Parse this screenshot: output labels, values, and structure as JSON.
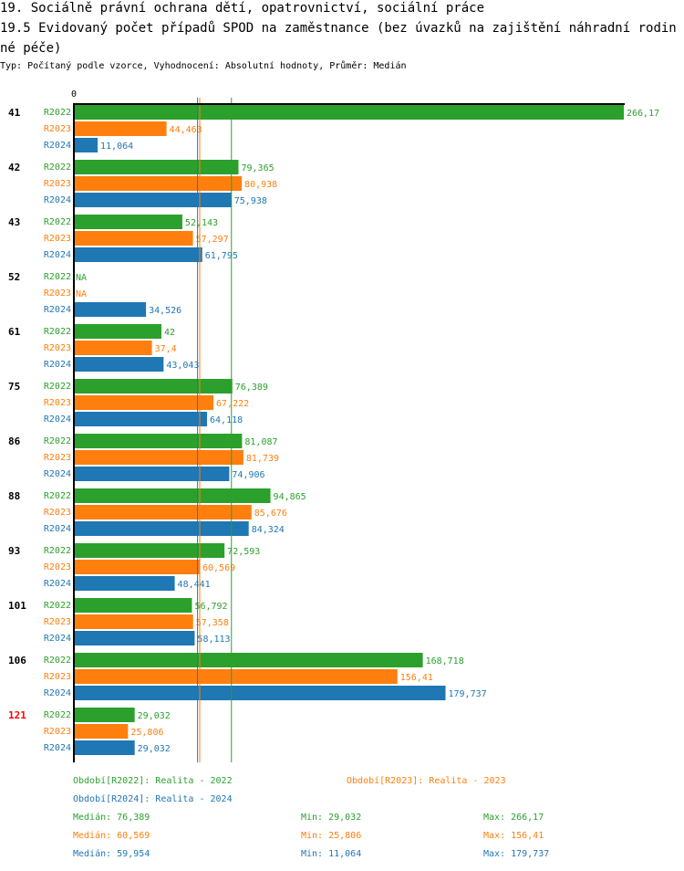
{
  "header": {
    "title": "19. Sociálně právní ochrana dětí, opatrovnictví, sociální práce",
    "subtitle": "19.5 Evidovaný počet případů SPOD na zaměstnance (bez úvazků na zajištění náhradní rodinné péče)",
    "meta": "Typ: Počítaný podle vzorce, Vyhodnocení: Absolutní hodnoty, Průměr: Medián"
  },
  "colors": {
    "R2022": "#2ca02c",
    "R2023": "#ff7f0e",
    "R2024": "#1f77b4",
    "highlight": "#ff0000",
    "axis": "#000000"
  },
  "chart_data": {
    "type": "bar",
    "orientation": "horizontal",
    "title": "19.5 Evidovaný počet případů SPOD na zaměstnance (bez úvazků na zajištění náhradní rodinné péče)",
    "xlabel": "",
    "ylabel": "",
    "x_tick_labels": [
      "0"
    ],
    "xlim": [
      0,
      266.17
    ],
    "grid": false,
    "legend_position": "bottom",
    "categories": [
      "41",
      "42",
      "43",
      "52",
      "61",
      "75",
      "86",
      "88",
      "93",
      "101",
      "106",
      "121"
    ],
    "highlighted_category": "121",
    "series": [
      {
        "name": "R2022",
        "color": "#2ca02c",
        "values": [
          266.17,
          79.365,
          52.143,
          null,
          42,
          76.389,
          81.087,
          94.865,
          72.593,
          56.792,
          168.718,
          29.032
        ],
        "labels": [
          "266,17",
          "79,365",
          "52,143",
          "NA",
          "42",
          "76,389",
          "81,087",
          "94,865",
          "72,593",
          "56,792",
          "168,718",
          "29,032"
        ]
      },
      {
        "name": "R2023",
        "color": "#ff7f0e",
        "values": [
          44.463,
          80.938,
          57.297,
          null,
          37.4,
          67.222,
          81.739,
          85.676,
          60.569,
          57.358,
          156.41,
          25.806
        ],
        "labels": [
          "44,463",
          "80,938",
          "57,297",
          "NA",
          "37,4",
          "67,222",
          "81,739",
          "85,676",
          "60,569",
          "57,358",
          "156,41",
          "25,806"
        ]
      },
      {
        "name": "R2024",
        "color": "#1f77b4",
        "values": [
          11.064,
          75.938,
          61.795,
          34.526,
          43.043,
          64.118,
          74.906,
          84.324,
          48.441,
          58.113,
          179.737,
          29.032
        ],
        "labels": [
          "11,064",
          "75,938",
          "61,795",
          "34,526",
          "43,043",
          "64,118",
          "74,906",
          "84,324",
          "48,441",
          "58,113",
          "179,737",
          "29,032"
        ]
      }
    ],
    "median_lines": [
      {
        "series": "R2022",
        "value": 76.389
      },
      {
        "series": "R2023",
        "value": 60.569
      },
      {
        "series": "R2024",
        "value": 59.954
      }
    ]
  },
  "legend": {
    "periods": [
      {
        "series": "R2022",
        "text": "Období[R2022]: Realita - 2022"
      },
      {
        "series": "R2023",
        "text": "Období[R2023]: Realita - 2023"
      },
      {
        "series": "R2024",
        "text": "Období[R2024]: Realita - 2024"
      }
    ],
    "stats": [
      {
        "series": "R2022",
        "median": "Medián: 76,389",
        "min": "Min: 29,032",
        "max": "Max: 266,17"
      },
      {
        "series": "R2023",
        "median": "Medián: 60,569",
        "min": "Min: 25,806",
        "max": "Max: 156,41"
      },
      {
        "series": "R2024",
        "median": "Medián: 59,954",
        "min": "Min: 11,064",
        "max": "Max: 179,737"
      }
    ]
  }
}
